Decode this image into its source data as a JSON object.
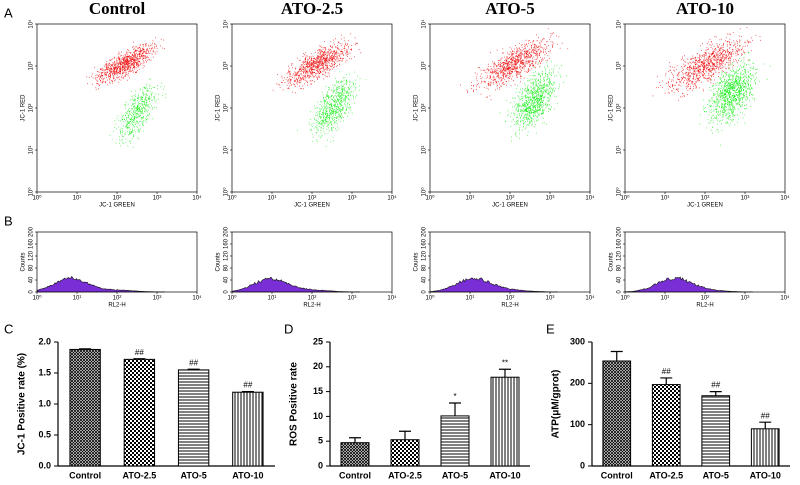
{
  "chart_data": [
    {
      "type": "scatter",
      "panel": "A",
      "title": "Control",
      "xlabel": "JC-1 GREEN",
      "ylabel": "JC-1 RED",
      "xscale": "log",
      "yscale": "log",
      "xlim": [
        1,
        10000
      ],
      "ylim": [
        1,
        10000
      ],
      "xticks": [
        {
          "value": 1,
          "label": "10⁰"
        },
        {
          "value": 10,
          "label": "10¹"
        },
        {
          "value": 100,
          "label": "10²"
        },
        {
          "value": 1000,
          "label": "10³"
        },
        {
          "value": 10000,
          "label": "10⁴"
        }
      ],
      "yticks": [
        {
          "value": 1,
          "label": "10⁰"
        },
        {
          "value": 10,
          "label": "10¹"
        },
        {
          "value": 100,
          "label": "10²"
        },
        {
          "value": 1000,
          "label": "10³"
        },
        {
          "value": 10000,
          "label": "10⁴"
        }
      ],
      "colors": [
        "#ee1111",
        "#22ee22"
      ]
    },
    {
      "type": "scatter",
      "title": "ATO-2.5",
      "xlabel": "JC-1 GREEN",
      "ylabel": "JC-1 RED",
      "xscale": "log",
      "yscale": "log",
      "xlim": [
        1,
        10000
      ],
      "ylim": [
        1,
        10000
      ],
      "xticks": [
        {
          "value": 1,
          "label": "10⁰"
        },
        {
          "value": 10,
          "label": "10¹"
        },
        {
          "value": 100,
          "label": "10²"
        },
        {
          "value": 1000,
          "label": "10³"
        },
        {
          "value": 10000,
          "label": "10⁴"
        }
      ],
      "yticks": [
        {
          "value": 1,
          "label": "10⁰"
        },
        {
          "value": 10,
          "label": "10¹"
        },
        {
          "value": 100,
          "label": "10²"
        },
        {
          "value": 1000,
          "label": "10³"
        },
        {
          "value": 10000,
          "label": "10⁴"
        }
      ],
      "colors": [
        "#ee1111",
        "#22ee22"
      ]
    },
    {
      "type": "scatter",
      "title": "ATO-5",
      "xlabel": "JC-1 GREEN",
      "ylabel": "JC-1 RED",
      "xscale": "log",
      "yscale": "log",
      "xlim": [
        1,
        10000
      ],
      "ylim": [
        1,
        10000
      ],
      "xticks": [
        {
          "value": 1,
          "label": "10⁰"
        },
        {
          "value": 10,
          "label": "10¹"
        },
        {
          "value": 100,
          "label": "10²"
        },
        {
          "value": 1000,
          "label": "10³"
        },
        {
          "value": 10000,
          "label": "10⁴"
        }
      ],
      "yticks": [
        {
          "value": 1,
          "label": "10⁰"
        },
        {
          "value": 10,
          "label": "10¹"
        },
        {
          "value": 100,
          "label": "10²"
        },
        {
          "value": 1000,
          "label": "10³"
        },
        {
          "value": 10000,
          "label": "10⁴"
        }
      ],
      "colors": [
        "#ee1111",
        "#22ee22"
      ]
    },
    {
      "type": "scatter",
      "title": "ATO-10",
      "xlabel": "JC-1 GREEN",
      "ylabel": "JC-1 RED",
      "xscale": "log",
      "yscale": "log",
      "xlim": [
        1,
        10000
      ],
      "ylim": [
        1,
        10000
      ],
      "xticks": [
        {
          "value": 1,
          "label": "10⁰"
        },
        {
          "value": 10,
          "label": "10¹"
        },
        {
          "value": 100,
          "label": "10²"
        },
        {
          "value": 1000,
          "label": "10³"
        },
        {
          "value": 10000,
          "label": "10⁴"
        }
      ],
      "yticks": [
        {
          "value": 1,
          "label": "10⁰"
        },
        {
          "value": 10,
          "label": "10¹"
        },
        {
          "value": 100,
          "label": "10²"
        },
        {
          "value": 1000,
          "label": "10³"
        },
        {
          "value": 10000,
          "label": "10⁴"
        }
      ],
      "colors": [
        "#ee1111",
        "#22ee22"
      ]
    },
    {
      "type": "histogram",
      "panel": "B",
      "xlabel": "RL2-H",
      "ylabel": "Counts",
      "xscale": "log",
      "xlim": [
        1,
        10000
      ],
      "ylim": [
        0,
        200
      ],
      "xticks": [
        {
          "value": 1,
          "label": "10⁰"
        },
        {
          "value": 10,
          "label": "10¹"
        },
        {
          "value": 100,
          "label": "10²"
        },
        {
          "value": 1000,
          "label": "10³"
        },
        {
          "value": 10000,
          "label": "10⁴"
        }
      ],
      "yticks": [
        0,
        40,
        80,
        120,
        160,
        200
      ],
      "color": "#7a2fd6"
    },
    {
      "type": "histogram",
      "xlabel": "RL2-H",
      "ylabel": "Counts",
      "xscale": "log",
      "xlim": [
        1,
        10000
      ],
      "ylim": [
        0,
        200
      ],
      "xticks": [
        {
          "value": 1,
          "label": "10⁰"
        },
        {
          "value": 10,
          "label": "10¹"
        },
        {
          "value": 100,
          "label": "10²"
        },
        {
          "value": 1000,
          "label": "10³"
        },
        {
          "value": 10000,
          "label": "10⁴"
        }
      ],
      "yticks": [
        0,
        40,
        80,
        120,
        160,
        200
      ],
      "color": "#7a2fd6"
    },
    {
      "type": "histogram",
      "xlabel": "RL2-H",
      "ylabel": "Counts",
      "xscale": "log",
      "xlim": [
        1,
        10000
      ],
      "ylim": [
        0,
        200
      ],
      "xticks": [
        {
          "value": 1,
          "label": "10⁰"
        },
        {
          "value": 10,
          "label": "10¹"
        },
        {
          "value": 100,
          "label": "10²"
        },
        {
          "value": 1000,
          "label": "10³"
        },
        {
          "value": 10000,
          "label": "10⁴"
        }
      ],
      "yticks": [
        0,
        40,
        80,
        120,
        160,
        200
      ],
      "color": "#7a2fd6"
    },
    {
      "type": "histogram",
      "xlabel": "RL2-H",
      "ylabel": "Counts",
      "xscale": "log",
      "xlim": [
        1,
        10000
      ],
      "ylim": [
        0,
        200
      ],
      "xticks": [
        {
          "value": 1,
          "label": "10⁰"
        },
        {
          "value": 10,
          "label": "10¹"
        },
        {
          "value": 100,
          "label": "10²"
        },
        {
          "value": 1000,
          "label": "10³"
        },
        {
          "value": 10000,
          "label": "10⁴"
        }
      ],
      "yticks": [
        0,
        40,
        80,
        120,
        160,
        200
      ],
      "color": "#7a2fd6"
    },
    {
      "type": "bar",
      "panel": "C",
      "ylabel": "JC-1 Positive rate (%)",
      "categories": [
        "Control",
        "ATO-2.5",
        "ATO-5",
        "ATO-10"
      ],
      "values": [
        1.88,
        1.72,
        1.55,
        1.19
      ],
      "errors": [
        0.01,
        0.01,
        0.01,
        0.01
      ],
      "annotations": [
        null,
        "##",
        "##",
        "##"
      ],
      "ylim": [
        0,
        2
      ],
      "yticks": [
        {
          "value": 0,
          "label": "0.0"
        },
        {
          "value": 0.5,
          "label": "0.5"
        },
        {
          "value": 1,
          "label": "1.0"
        },
        {
          "value": 1.5,
          "label": "1.5"
        },
        {
          "value": 2,
          "label": "2.0"
        }
      ]
    },
    {
      "type": "bar",
      "panel": "D",
      "ylabel": "ROS Positive rate",
      "categories": [
        "Control",
        "ATO-2.5",
        "ATO-5",
        "ATO-10"
      ],
      "values": [
        4.7,
        5.3,
        10.1,
        17.9
      ],
      "errors": [
        1.0,
        1.7,
        2.6,
        1.6
      ],
      "annotations": [
        null,
        null,
        "*",
        "**"
      ],
      "ylim": [
        0,
        25
      ],
      "yticks": [
        0,
        5,
        10,
        15,
        20,
        25
      ]
    },
    {
      "type": "bar",
      "panel": "E",
      "ylabel": "ATP(μM/gprot)",
      "categories": [
        "Control",
        "ATO-2.5",
        "ATO-5",
        "ATO-10"
      ],
      "values": [
        254,
        197,
        170,
        90
      ],
      "errors": [
        23,
        16,
        10,
        16
      ],
      "annotations": [
        null,
        "##",
        "##",
        "##"
      ],
      "ylim": [
        0,
        300
      ],
      "yticks": [
        0,
        100,
        200,
        300
      ]
    }
  ]
}
